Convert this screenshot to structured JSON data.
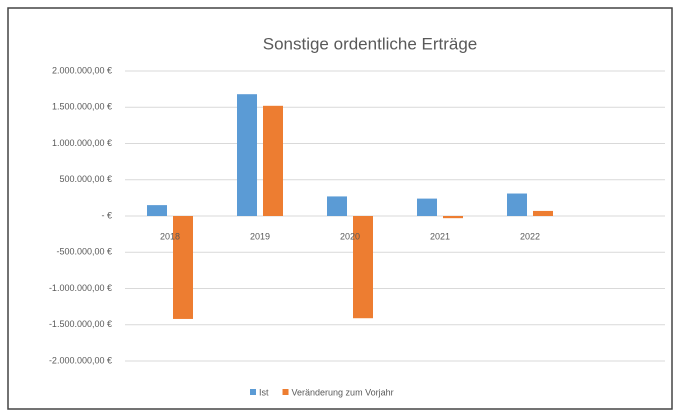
{
  "chart_data": {
    "type": "bar",
    "title": "Sonstige ordentliche Erträge",
    "categories": [
      "2018",
      "2019",
      "2020",
      "2021",
      "2022"
    ],
    "series": [
      {
        "name": "Ist",
        "color": "#5b9bd5",
        "values": [
          150000,
          1680000,
          270000,
          240000,
          310000
        ]
      },
      {
        "name": "Veränderung zum Vorjahr",
        "color": "#ed7d31",
        "values": [
          -1420000,
          1520000,
          -1410000,
          -30000,
          70000
        ]
      }
    ],
    "ylim": [
      -2000000,
      2000000
    ],
    "yticks": [
      {
        "value": -2000000,
        "label": "-2.000.000,00 €"
      },
      {
        "value": -1500000,
        "label": "-1.500.000,00 €"
      },
      {
        "value": -1000000,
        "label": "-1.000.000,00 €"
      },
      {
        "value": -500000,
        "label": "-500.000,00 €"
      },
      {
        "value": 0,
        "label": "- €"
      },
      {
        "value": 500000,
        "label": "500.000,00 €"
      },
      {
        "value": 1000000,
        "label": "1.000.000,00 €"
      },
      {
        "value": 1500000,
        "label": "1.500.000,00 €"
      },
      {
        "value": 2000000,
        "label": "2.000.000,00 €"
      }
    ],
    "grid": true,
    "legend": "bottom"
  }
}
